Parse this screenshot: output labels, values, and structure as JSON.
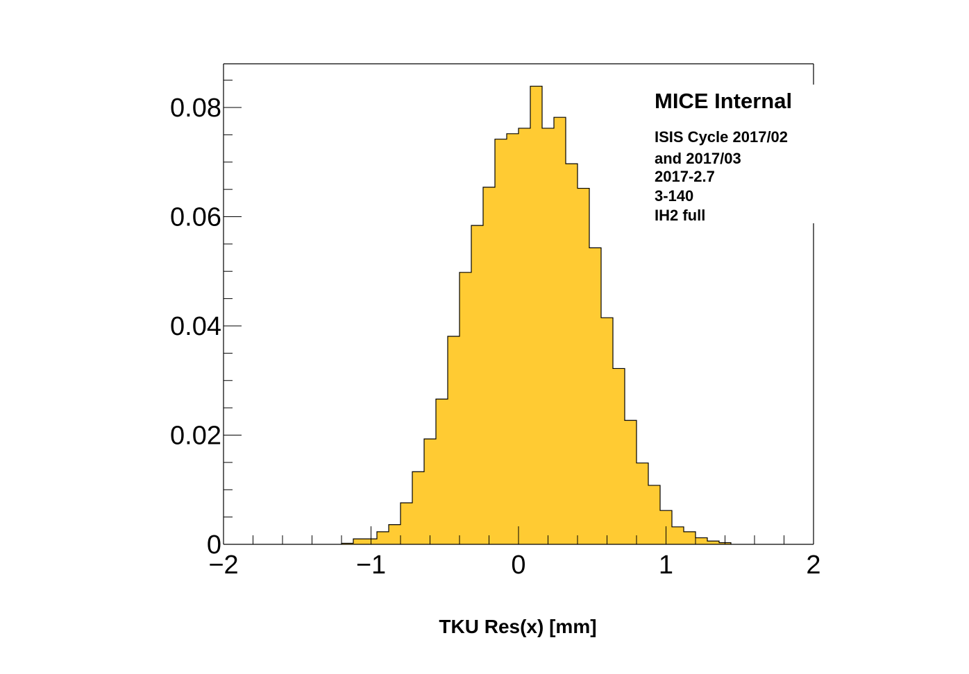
{
  "chart_data": {
    "type": "bar",
    "title": "",
    "xlabel": "TKU Res(x) [mm]",
    "ylabel": "",
    "xlim": [
      -2,
      2
    ],
    "ylim": [
      0,
      0.088
    ],
    "bin_width": 0.08,
    "bin_edges_start": -1.2,
    "values": [
      0.0002,
      0.001,
      0.001,
      0.0023,
      0.0036,
      0.0076,
      0.0133,
      0.0193,
      0.0266,
      0.0381,
      0.0498,
      0.0584,
      0.0654,
      0.0742,
      0.0752,
      0.0762,
      0.0839,
      0.0762,
      0.0782,
      0.0697,
      0.0652,
      0.0543,
      0.0415,
      0.0322,
      0.0227,
      0.0149,
      0.0108,
      0.0062,
      0.0032,
      0.0023,
      0.0012,
      0.0006,
      0.0003
    ],
    "x_ticks": [
      "−2",
      "−1",
      "0",
      "1",
      "2"
    ],
    "y_ticks": [
      "0",
      "0.02",
      "0.04",
      "0.06",
      "0.08"
    ],
    "fill_color": "#ffcb33",
    "line_color": "#000000",
    "grid": false,
    "legend_position": "top-right",
    "annotation": {
      "title": "MICE Internal",
      "lines": [
        "ISIS Cycle 2017/02",
        "and 2017/03",
        "2017-2.7",
        "3-140",
        "IH2 full"
      ]
    }
  }
}
